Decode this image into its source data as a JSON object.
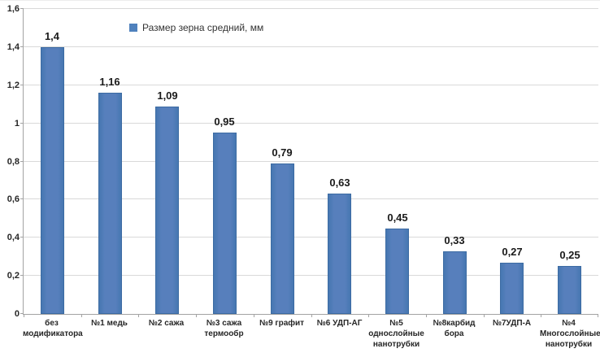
{
  "chart_data": {
    "type": "bar",
    "title": "",
    "legend": [
      "Размер зерна средний, мм"
    ],
    "categories": [
      "без\nмодификатора",
      "№1 медь",
      "№2 сажа",
      "№3 сажа\nтермообр",
      "№9 графит",
      "№6 УДП-АГ",
      "№5\nоднослойные\nнанотрубки",
      "№8карбид\nбора",
      "№7УДП-А",
      "№4\nМногослойные\nнанотрубки"
    ],
    "values": [
      1.4,
      1.16,
      1.09,
      0.95,
      0.79,
      0.63,
      0.45,
      0.33,
      0.27,
      0.25
    ],
    "value_labels": [
      "1,4",
      "1,16",
      "1,09",
      "0,95",
      "0,79",
      "0,63",
      "0,45",
      "0,33",
      "0,27",
      "0,25"
    ],
    "xlabel": "",
    "ylabel": "",
    "ylim": [
      0,
      1.6
    ],
    "y_ticks": [
      "0",
      "0,2",
      "0,4",
      "0,6",
      "0,8",
      "1",
      "1,2",
      "1,4",
      "1,6"
    ],
    "grid": true,
    "legend_position": "top-inside",
    "colors": {
      "bar": "#4f81bd",
      "bar_border": "#3c6ba3",
      "gridline": "#d9d9d9",
      "axis": "#a3a3a3",
      "text": "#262626"
    }
  }
}
